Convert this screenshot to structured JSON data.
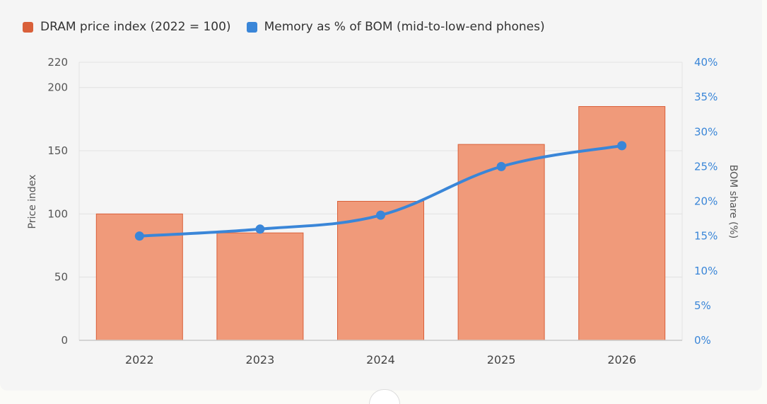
{
  "legend": [
    {
      "label": "DRAM price index (2022 = 100)",
      "color": "#d9603a"
    },
    {
      "label": "Memory as % of BOM (mid-to-low-end phones)",
      "color": "#3a86d8"
    }
  ],
  "chart_data": {
    "type": "bar",
    "categories": [
      "2022",
      "2023",
      "2024",
      "2025",
      "2026"
    ],
    "series": [
      {
        "name": "DRAM price index (2022 = 100)",
        "type": "bar",
        "axis": "left",
        "values": [
          100,
          85,
          110,
          155,
          185
        ],
        "color": "#f09a7a",
        "border_color": "#d9603a"
      },
      {
        "name": "Memory as % of BOM (mid-to-low-end phones)",
        "type": "line",
        "axis": "right",
        "values": [
          15,
          16,
          18,
          25,
          28
        ],
        "color": "#3a86d8"
      }
    ],
    "y_left": {
      "label": "Price index",
      "ticks": [
        0,
        50,
        100,
        150,
        200,
        220
      ],
      "ylim": [
        0,
        220
      ]
    },
    "y_right": {
      "label": "BOM share (%)",
      "ticks": [
        "0%",
        "5%",
        "10%",
        "15%",
        "20%",
        "25%",
        "30%",
        "35%",
        "40%"
      ],
      "ylim": [
        0,
        40
      ]
    },
    "grid": true,
    "legend_position": "top-left"
  }
}
